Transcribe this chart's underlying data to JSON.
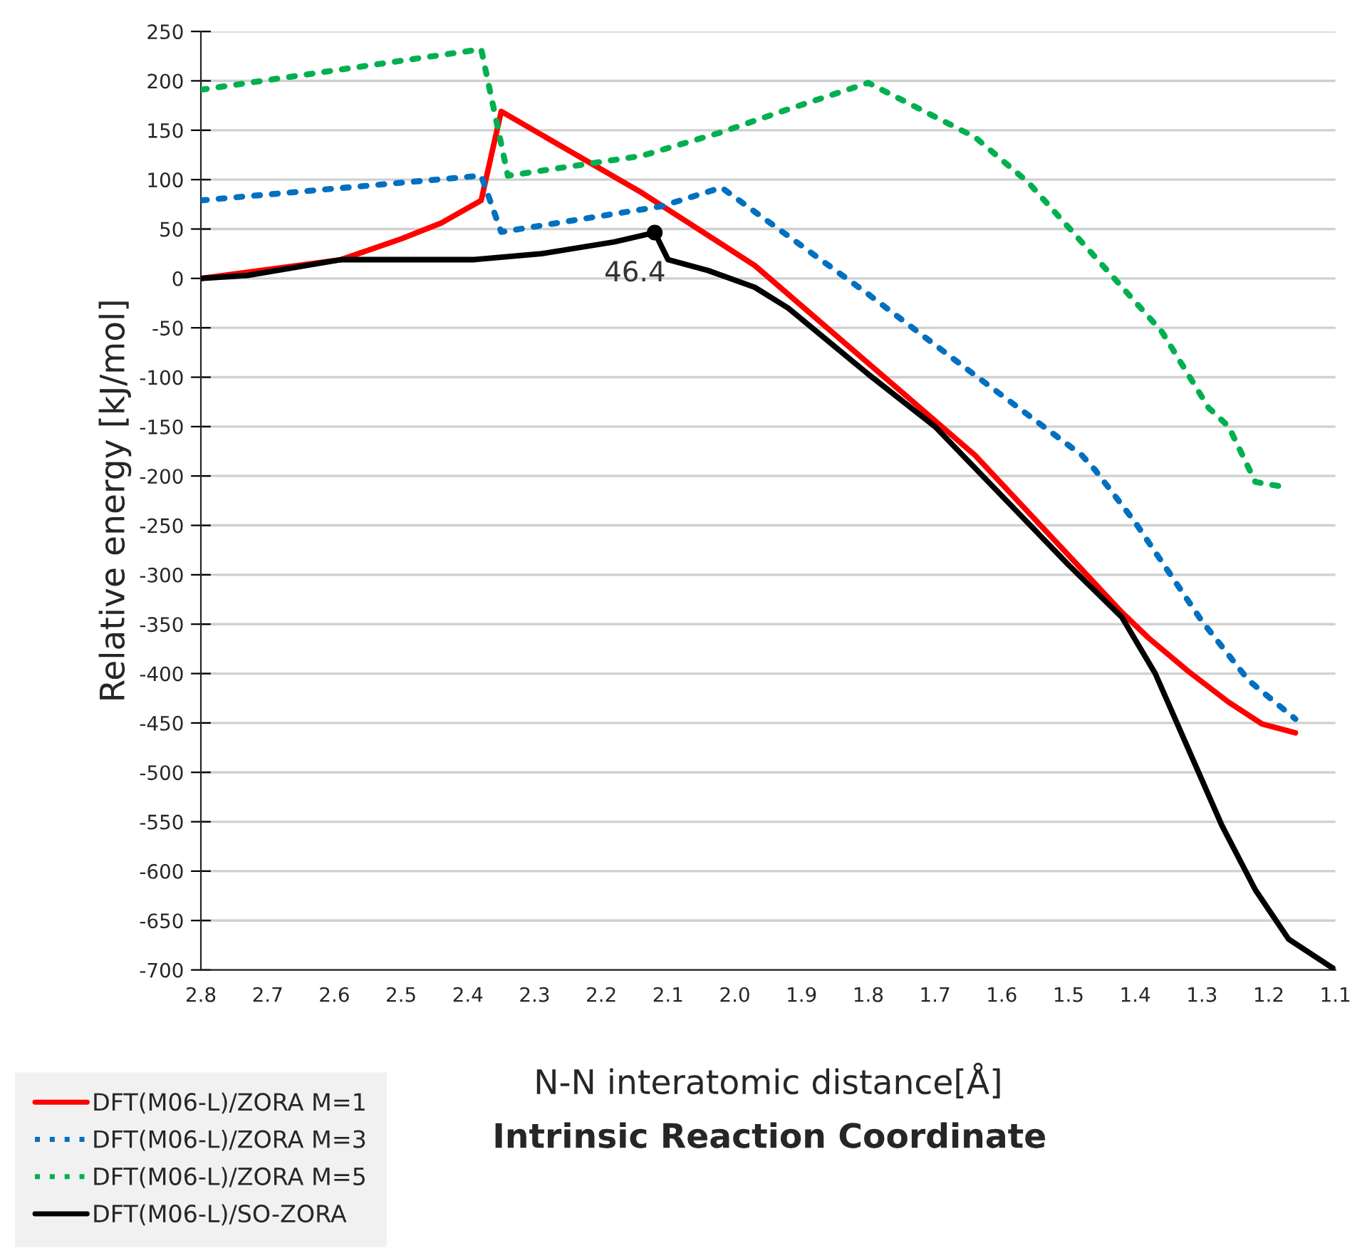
{
  "chart_data": {
    "type": "line",
    "xlabel": "N-N interatomic distance[Å]",
    "ylabel": "Relative energy [kJ/mol]",
    "annotations": [
      {
        "text": "46.4",
        "x": 2.12,
        "y": 46.4
      },
      "Intrinsic Reaction Coordinate"
    ],
    "xlim": [
      2.8,
      1.1
    ],
    "xticks": [
      2.8,
      2.7,
      2.6,
      2.5,
      2.4,
      2.3,
      2.2,
      2.1,
      {
        "value": 2,
        "label": "2.0"
      },
      1.9,
      1.8,
      1.7,
      1.6,
      1.5,
      1.4,
      1.3,
      1.2,
      1.1
    ],
    "ylim": [
      -700,
      250
    ],
    "yticks": [
      250,
      200,
      150,
      100,
      50,
      0,
      -50,
      -100,
      -150,
      -200,
      -250,
      -300,
      -350,
      -400,
      -450,
      -500,
      -550,
      -600,
      -650,
      -700
    ],
    "grid": "y",
    "legend": "bottom left",
    "series": [
      {
        "name": "DFT(M06-L)/ZORA M=1",
        "color": "#ff0000",
        "line_style": "solid",
        "x": [
          2.8,
          2.59,
          2.5,
          2.44,
          2.38,
          2.35,
          2.14,
          1.97,
          1.64,
          1.42,
          1.38,
          1.32,
          1.26,
          1.21,
          1.16
        ],
        "values": [
          0,
          19,
          40,
          56,
          79,
          169,
          87,
          13,
          -179,
          -338,
          -364,
          -398,
          -429,
          -451,
          -460
        ]
      },
      {
        "name": "DFT(M06-L)/ZORA M=3",
        "color": "#0070c0",
        "line_style": "dotted",
        "x": [
          2.8,
          2.38,
          2.35,
          2.11,
          2.02,
          1.8,
          1.64,
          1.48,
          1.46,
          1.4,
          1.3,
          1.23,
          1.16
        ],
        "values": [
          79,
          104,
          47,
          73,
          92,
          -16,
          -98,
          -179,
          -194,
          -247,
          -347,
          -407,
          -446
        ]
      },
      {
        "name": "DFT(M06-L)/ZORA M=5",
        "color": "#00b050",
        "line_style": "dotted",
        "x": [
          2.8,
          2.38,
          2.34,
          2.14,
          2.02,
          1.93,
          1.8,
          1.64,
          1.56,
          1.43,
          1.36,
          1.29,
          1.26,
          1.22,
          1.17
        ],
        "values": [
          191,
          232,
          104,
          124,
          148,
          169,
          198,
          143,
          97,
          -1,
          -54,
          -131,
          -150,
          -206,
          -212
        ]
      },
      {
        "name": "DFT(M06-L)/SO-ZORA",
        "color": "#000000",
        "line_style": "solid",
        "x": [
          2.8,
          2.73,
          2.59,
          2.39,
          2.29,
          2.18,
          2.12,
          2.1,
          2.04,
          1.97,
          1.92,
          1.8,
          1.7,
          1.5,
          1.42,
          1.37,
          1.32,
          1.27,
          1.22,
          1.17,
          1.1
        ],
        "values": [
          0,
          3,
          19,
          19,
          25,
          37,
          46.4,
          19,
          8,
          -9,
          -30,
          -97,
          -150,
          -290,
          -343,
          -400,
          -477,
          -554,
          -619,
          -669,
          -700
        ]
      }
    ]
  }
}
